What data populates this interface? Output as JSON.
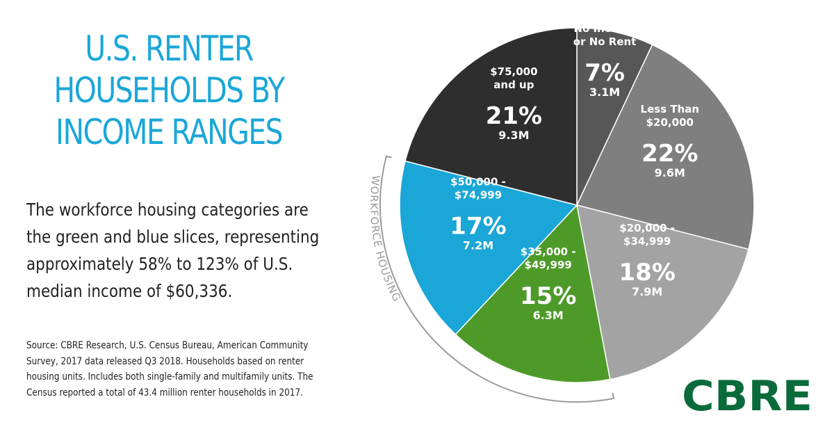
{
  "title_lines": [
    "U.S. RENTER",
    "HOUSEHOLDS BY",
    "INCOME RANGES"
  ],
  "description_lines": [
    "The workforce housing categories are",
    "the green and blue slices, representing",
    "approximately 58% to 123% of U.S.",
    "median income of $60,336."
  ],
  "source_lines": [
    "Source: CBRE Research, U.S. Census Bureau, American Community",
    "Survey, 2017 data released Q3 2018. Households based on renter",
    "housing units. Includes both single-family and multifamily units. The",
    "Census reported a total of 43.4 million renter households in 2017."
  ],
  "logo": "CBRE",
  "colors": {
    "title": "#1ba7d8",
    "logo": "#0a6b3a",
    "bracket": "#9a9a9a",
    "slices": [
      "#575757",
      "#7f7f7f",
      "#a3a3a3",
      "#4d9a28",
      "#1aa6d6",
      "#2e2e2e"
    ]
  },
  "chart_data": {
    "type": "pie",
    "annotation": "WORKFORCE HOUSING",
    "slices": [
      {
        "label_lines": [
          "No Income",
          "or No Rent"
        ],
        "percent": 7,
        "pct_text": "7%",
        "count_text": "3.1M"
      },
      {
        "label_lines": [
          "Less Than",
          "$20,000"
        ],
        "percent": 22,
        "pct_text": "22%",
        "count_text": "9.6M"
      },
      {
        "label_lines": [
          "$20,000 -",
          "$34,999"
        ],
        "percent": 18,
        "pct_text": "18%",
        "count_text": "7.9M"
      },
      {
        "label_lines": [
          "$35,000 -",
          "$49,999"
        ],
        "percent": 15,
        "pct_text": "15%",
        "count_text": "6.3M"
      },
      {
        "label_lines": [
          "$50,000 -",
          "$74,999"
        ],
        "percent": 17,
        "pct_text": "17%",
        "count_text": "7.2M"
      },
      {
        "label_lines": [
          "$75,000",
          "and up"
        ],
        "percent": 21,
        "pct_text": "21%",
        "count_text": "9.3M"
      }
    ]
  }
}
